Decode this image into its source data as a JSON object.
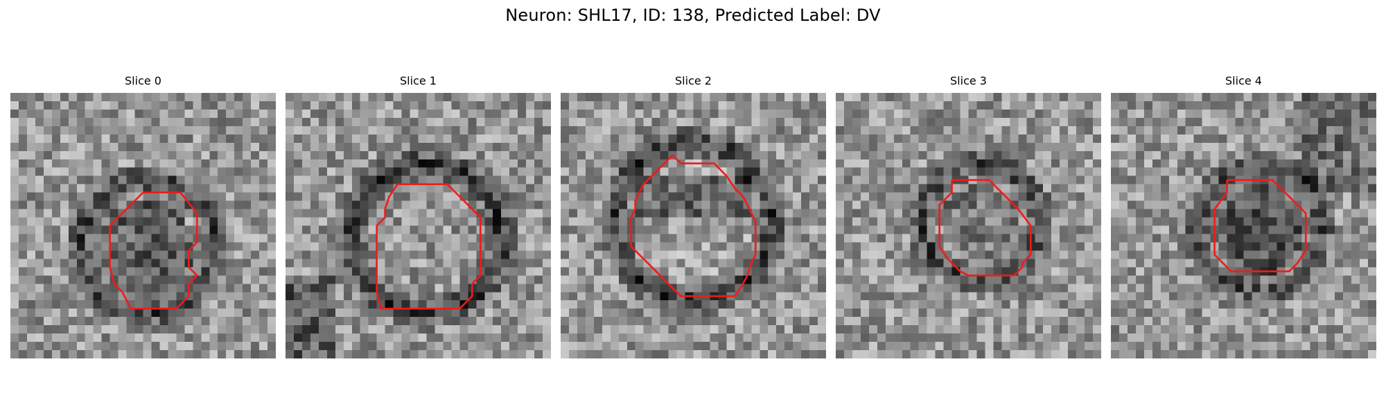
{
  "figure": {
    "title": "Neuron: SHL17, ID: 138, Predicted Label: DV"
  },
  "colors": {
    "contour": "#ee1c1c",
    "background": "#ffffff",
    "colormap": "grayscale"
  },
  "panels": [
    {
      "title": "Slice 0",
      "contour_color": "#ee1c1c"
    },
    {
      "title": "Slice 1",
      "contour_color": "#ee1c1c"
    },
    {
      "title": "Slice 2",
      "contour_color": "#ee1c1c"
    },
    {
      "title": "Slice 3",
      "contour_color": "#ee1c1c"
    },
    {
      "title": "Slice 4",
      "contour_color": "#ee1c1c"
    }
  ]
}
